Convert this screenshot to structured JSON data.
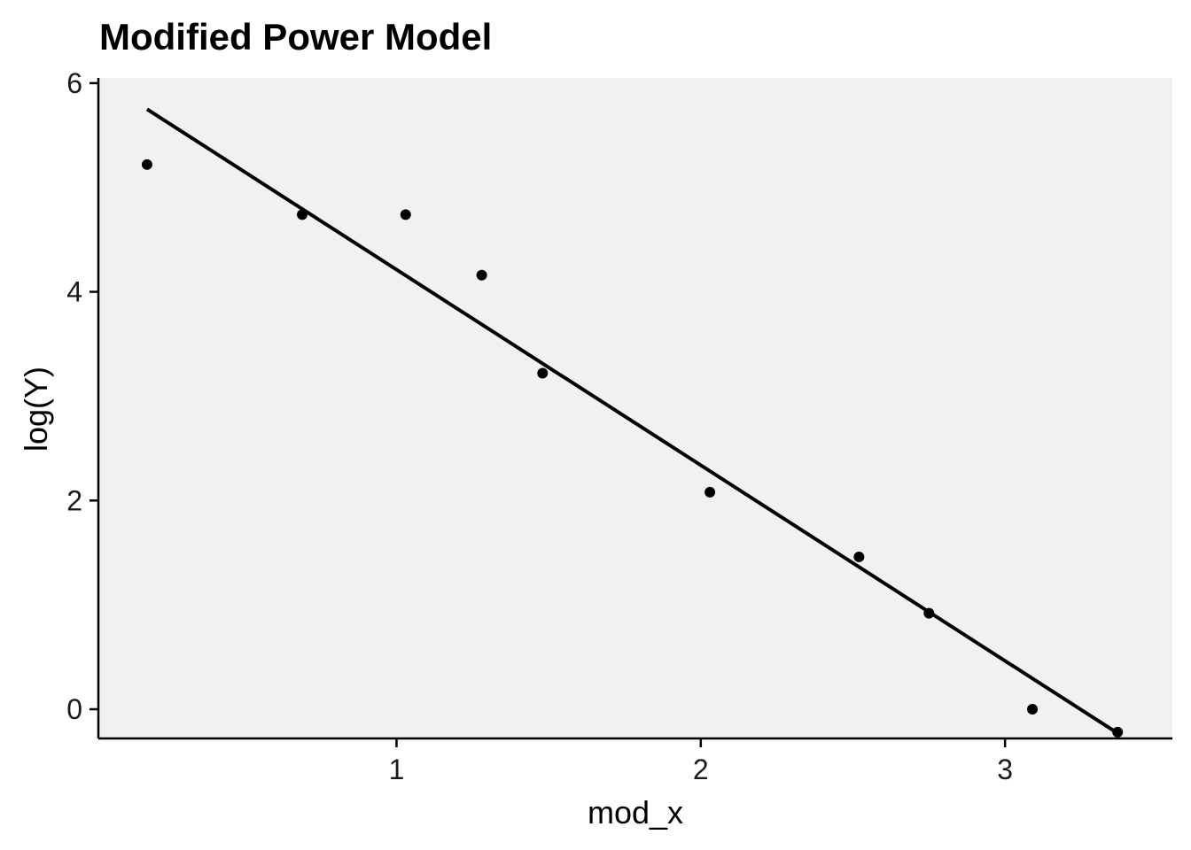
{
  "chart_data": {
    "type": "scatter",
    "title": "Modified Power Model",
    "xlabel": "mod_x",
    "ylabel": "log(Y)",
    "xlim": [
      0.02,
      3.55
    ],
    "ylim": [
      -0.28,
      6.05
    ],
    "xticks": [
      1,
      2,
      3
    ],
    "xtick_labels": [
      "1",
      "2",
      "3"
    ],
    "yticks": [
      0,
      2,
      4,
      6
    ],
    "ytick_labels": [
      "0",
      "2",
      "4",
      "6"
    ],
    "grid": false,
    "legend": "none",
    "colors": {
      "panel_background": "#f1f1f1",
      "points": "#000000",
      "line": "#000000",
      "axis": "#000000"
    },
    "series": [
      {
        "kind": "points",
        "x": [
          0.18,
          0.69,
          1.03,
          1.28,
          1.48,
          2.03,
          2.52,
          2.75,
          3.09,
          3.37
        ],
        "y": [
          5.22,
          4.74,
          4.74,
          4.16,
          3.22,
          2.08,
          1.46,
          0.92,
          0.0,
          -0.22
        ]
      },
      {
        "kind": "fit_line",
        "x": [
          0.18,
          3.37
        ],
        "y": [
          5.75,
          -0.23
        ]
      }
    ]
  }
}
